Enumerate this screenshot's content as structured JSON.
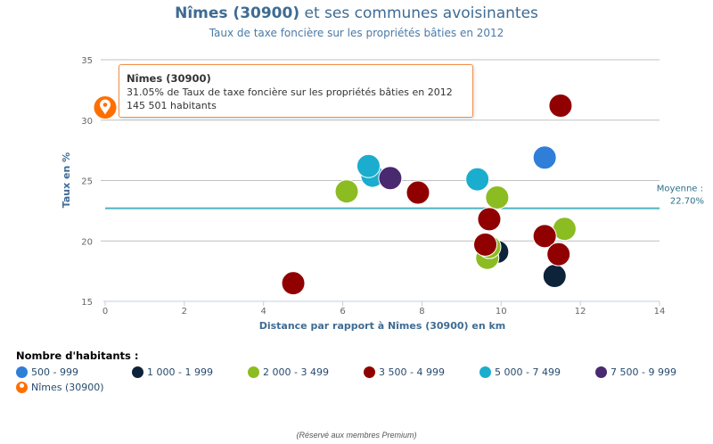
{
  "header": {
    "title_bold": "Nîmes (30900)",
    "title_rest": " et ses communes avoisinantes",
    "subtitle": "Taux de taxe foncière sur les propriétés bâties en 2012"
  },
  "colors": {
    "c500": "#2f7ed8",
    "c1000": "#0d233a",
    "c2000": "#8bbc21",
    "c3500": "#910000",
    "c5000": "#1aadce",
    "c7500": "#492970",
    "nimes": "#ff6f00",
    "average_line": "#4bb3c1",
    "axis_title": "#3e6b94"
  },
  "chart_data": {
    "type": "scatter",
    "title": "Nîmes (30900) et ses communes avoisinantes",
    "subtitle": "Taux de taxe foncière sur les propriétés bâties en 2012",
    "xlabel": "Distance par rapport à Nîmes (30900) en km",
    "ylabel": "Taux en %",
    "xlim": [
      0,
      14
    ],
    "ylim": [
      15,
      35
    ],
    "xticks": [
      "0",
      "2",
      "4",
      "6",
      "8",
      "10",
      "12",
      "14"
    ],
    "yticks": [
      "15",
      "20",
      "25",
      "30",
      "35"
    ],
    "grid": true,
    "average": {
      "label": "Moyenne :",
      "value_label": "22.70%",
      "value": 22.7
    },
    "series": [
      {
        "name": "500 - 999",
        "color": "#2f7ed8",
        "points": [
          [
            11.1,
            26.9
          ]
        ]
      },
      {
        "name": "1 000 - 1 999",
        "color": "#0d233a",
        "points": [
          [
            9.9,
            19.1
          ],
          [
            11.35,
            17.1
          ]
        ]
      },
      {
        "name": "2 000 - 3 499",
        "color": "#8bbc21",
        "points": [
          [
            6.1,
            24.1
          ],
          [
            9.9,
            23.6
          ],
          [
            9.65,
            18.6
          ],
          [
            9.7,
            19.5
          ],
          [
            11.6,
            21.0
          ]
        ]
      },
      {
        "name": "3 500 - 4 999",
        "color": "#910000",
        "points": [
          [
            4.75,
            16.5
          ],
          [
            7.9,
            24.0
          ],
          [
            9.7,
            21.8
          ],
          [
            9.6,
            19.7
          ],
          [
            11.5,
            31.2
          ],
          [
            11.1,
            20.4
          ],
          [
            11.45,
            18.9
          ]
        ]
      },
      {
        "name": "5 000 - 7 499",
        "color": "#1aadce",
        "points": [
          [
            6.75,
            25.4
          ],
          [
            6.65,
            26.2
          ],
          [
            9.4,
            25.1
          ]
        ]
      },
      {
        "name": "7 500 - 9 999",
        "color": "#492970",
        "points": [
          [
            7.2,
            25.2
          ]
        ]
      },
      {
        "name": "Nîmes (30900)",
        "color": "#ff6f00",
        "marker": "pin",
        "points": [
          [
            0,
            31.05
          ]
        ]
      }
    ],
    "legend_title": "Nombre d'habitants :",
    "legend_position": "bottom-left"
  },
  "tooltip": {
    "title": "Nîmes (30900)",
    "line1": "31.05% de Taux de taxe foncière sur les propriétés bâties en 2012",
    "line2": "145 501 habitants"
  },
  "footer": "(Réservé aux membres Premium)"
}
